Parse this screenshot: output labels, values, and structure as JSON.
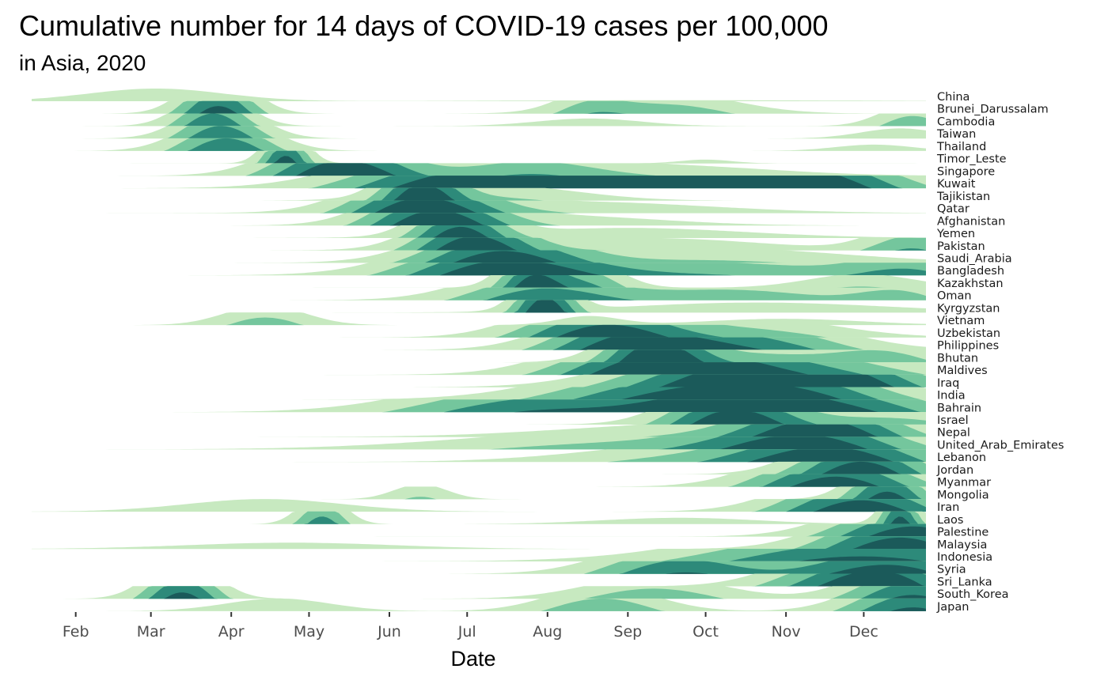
{
  "chart_data": {
    "type": "area",
    "subtype": "horizon",
    "title": "Cumulative number for 14 days of COVID-19 cases per 100,000",
    "subtitle": "in Asia, 2020",
    "xlabel": "Date",
    "x_ticks": [
      "Feb",
      "Mar",
      "Apr",
      "May",
      "Jun",
      "Jul",
      "Aug",
      "Sep",
      "Oct",
      "Nov",
      "Dec"
    ],
    "band_colors": [
      "#c7e9c0",
      "#74c69d",
      "#2d8a7a",
      "#1b5a5a"
    ],
    "series": [
      {
        "name": "China",
        "peaks": [
          [
            48,
            26,
            1.0
          ],
          [
            250,
            60,
            0.08
          ]
        ]
      },
      {
        "name": "Brunei_Darussalam",
        "peaks": [
          [
            72,
            12,
            3.6
          ],
          [
            215,
            12,
            1.2
          ],
          [
            245,
            25,
            1.7
          ]
        ]
      },
      {
        "name": "Cambodia",
        "peaks": [
          [
            70,
            12,
            3.0
          ],
          [
            215,
            20,
            0.6
          ],
          [
            340,
            12,
            1.8
          ]
        ]
      },
      {
        "name": "Taiwan",
        "peaks": [
          [
            73,
            14,
            3.0
          ],
          [
            335,
            15,
            0.8
          ]
        ]
      },
      {
        "name": "Thailand",
        "peaks": [
          [
            75,
            16,
            3.0
          ],
          [
            325,
            15,
            0.5
          ]
        ]
      },
      {
        "name": "Timor_Leste",
        "peaks": [
          [
            98,
            7,
            3.6
          ],
          [
            260,
            10,
            0.3
          ]
        ]
      },
      {
        "name": "Singapore",
        "peaks": [
          [
            120,
            22,
            4.2
          ],
          [
            190,
            25,
            1.8
          ],
          [
            245,
            40,
            0.8
          ]
        ]
      },
      {
        "name": "Kuwait",
        "peaks": [
          [
            165,
            35,
            3.8
          ],
          [
            240,
            40,
            3.3
          ],
          [
            300,
            30,
            3.6
          ]
        ]
      },
      {
        "name": "Tajikistan",
        "peaks": [
          [
            150,
            12,
            3.6
          ],
          [
            180,
            30,
            1.2
          ]
        ]
      },
      {
        "name": "Qatar",
        "peaks": [
          [
            150,
            22,
            3.8
          ],
          [
            210,
            50,
            0.9
          ]
        ]
      },
      {
        "name": "Afghanistan",
        "peaks": [
          [
            155,
            20,
            3.8
          ],
          [
            200,
            40,
            0.8
          ]
        ]
      },
      {
        "name": "Yemen",
        "peaks": [
          [
            165,
            14,
            3.6
          ],
          [
            230,
            45,
            0.8
          ]
        ]
      },
      {
        "name": "Pakistan",
        "peaks": [
          [
            170,
            18,
            3.8
          ],
          [
            235,
            45,
            1.0
          ],
          [
            340,
            15,
            2.1
          ]
        ]
      },
      {
        "name": "Saudi_Arabia",
        "peaks": [
          [
            180,
            25,
            3.6
          ],
          [
            260,
            50,
            1.2
          ]
        ]
      },
      {
        "name": "Bangladesh",
        "peaks": [
          [
            180,
            30,
            3.5
          ],
          [
            260,
            55,
            2.0
          ],
          [
            340,
            20,
            1.8
          ]
        ]
      },
      {
        "name": "Kazakhstan",
        "peaks": [
          [
            193,
            10,
            3.6
          ],
          [
            215,
            12,
            2.1
          ],
          [
            320,
            20,
            1.1
          ]
        ]
      },
      {
        "name": "Oman",
        "peaks": [
          [
            195,
            25,
            2.6
          ],
          [
            270,
            40,
            1.8
          ],
          [
            335,
            15,
            1.3
          ]
        ]
      },
      {
        "name": "Kyrgyzstan",
        "peaks": [
          [
            198,
            9,
            4.0
          ],
          [
            280,
            50,
            0.8
          ]
        ]
      },
      {
        "name": "Vietnam",
        "peaks": [
          [
            90,
            15,
            1.6
          ],
          [
            215,
            12,
            0.7
          ],
          [
            290,
            30,
            0.5
          ]
        ]
      },
      {
        "name": "Uzbekistan",
        "peaks": [
          [
            220,
            25,
            3.8
          ],
          [
            280,
            30,
            1.5
          ]
        ]
      },
      {
        "name": "Philippines",
        "peaks": [
          [
            230,
            25,
            3.7
          ],
          [
            280,
            30,
            2.6
          ]
        ]
      },
      {
        "name": "Bhutan",
        "peaks": [
          [
            240,
            15,
            4.0
          ],
          [
            280,
            30,
            1.6
          ],
          [
            330,
            18,
            1.5
          ]
        ]
      },
      {
        "name": "Maldives",
        "peaks": [
          [
            240,
            30,
            3.6
          ],
          [
            290,
            40,
            2.6
          ]
        ]
      },
      {
        "name": "Iraq",
        "peaks": [
          [
            270,
            35,
            3.8
          ],
          [
            310,
            30,
            3.0
          ]
        ]
      },
      {
        "name": "India",
        "peaks": [
          [
            250,
            40,
            3.4
          ],
          [
            300,
            30,
            2.2
          ]
        ]
      },
      {
        "name": "Bahrain",
        "peaks": [
          [
            195,
            40,
            3.0
          ],
          [
            270,
            30,
            3.8
          ],
          [
            320,
            30,
            2.4
          ]
        ]
      },
      {
        "name": "Israel",
        "peaks": [
          [
            270,
            20,
            4.0
          ],
          [
            330,
            30,
            1.5
          ]
        ]
      },
      {
        "name": "Nepal",
        "peaks": [
          [
            305,
            25,
            3.8
          ],
          [
            255,
            50,
            1.0
          ]
        ]
      },
      {
        "name": "United_Arab_Emirates",
        "peaks": [
          [
            230,
            60,
            1.5
          ],
          [
            300,
            30,
            3.4
          ]
        ]
      },
      {
        "name": "Lebanon",
        "peaks": [
          [
            310,
            30,
            3.8
          ],
          [
            250,
            40,
            1.2
          ]
        ]
      },
      {
        "name": "Jordan",
        "peaks": [
          [
            320,
            20,
            4.0
          ]
        ]
      },
      {
        "name": "Myanmar",
        "peaks": [
          [
            310,
            25,
            3.8
          ]
        ]
      },
      {
        "name": "Mongolia",
        "peaks": [
          [
            150,
            10,
            1.2
          ],
          [
            330,
            12,
            3.6
          ]
        ]
      },
      {
        "name": "Iran",
        "peaks": [
          [
            90,
            30,
            1.0
          ],
          [
            320,
            25,
            3.9
          ]
        ]
      },
      {
        "name": "Laos",
        "peaks": [
          [
            112,
            8,
            2.6
          ],
          [
            335,
            6,
            3.6
          ],
          [
            250,
            30,
            0.5
          ]
        ]
      },
      {
        "name": "Palestine",
        "peaks": [
          [
            340,
            25,
            3.8
          ]
        ]
      },
      {
        "name": "Malaysia",
        "peaks": [
          [
            335,
            25,
            3.9
          ],
          [
            100,
            40,
            0.5
          ]
        ]
      },
      {
        "name": "Indonesia",
        "peaks": [
          [
            320,
            50,
            3.4
          ]
        ]
      },
      {
        "name": "Syria",
        "peaks": [
          [
            250,
            25,
            3.0
          ],
          [
            330,
            30,
            3.7
          ]
        ]
      },
      {
        "name": "Sri_Lanka",
        "peaks": [
          [
            330,
            20,
            3.7
          ],
          [
            300,
            20,
            1.5
          ]
        ]
      },
      {
        "name": "South_Korea",
        "peaks": [
          [
            58,
            12,
            3.5
          ],
          [
            240,
            25,
            1.8
          ],
          [
            340,
            20,
            3.3
          ]
        ]
      },
      {
        "name": "Japan",
        "peaks": [
          [
            95,
            20,
            1.0
          ],
          [
            220,
            20,
            2.0
          ],
          [
            340,
            20,
            3.3
          ]
        ]
      }
    ]
  }
}
